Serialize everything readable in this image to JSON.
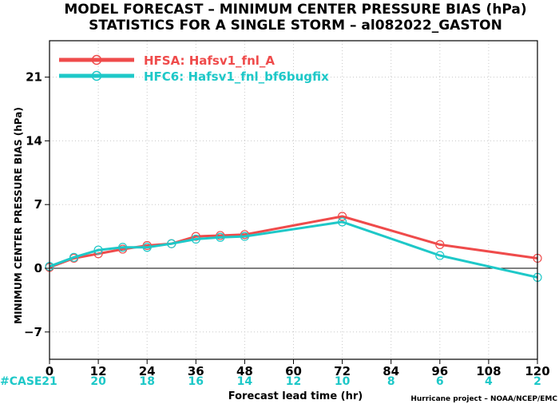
{
  "chart_data": {
    "type": "line",
    "title": "MODEL FORECAST – MINIMUM CENTER PRESSURE BIAS (hPa)",
    "subtitle": "STATISTICS FOR A SINGLE STORM – al082022_GASTON",
    "xlabel": "Forecast lead time (hr)",
    "ylabel": "MINIMUM CENTER PRESSURE BIAS (hPa)",
    "xlim": [
      0,
      120
    ],
    "ylim": [
      -10,
      25
    ],
    "xticks": [
      0,
      12,
      24,
      36,
      48,
      60,
      72,
      84,
      96,
      108,
      120
    ],
    "yticks": [
      -7,
      0,
      7,
      14,
      21
    ],
    "grid": true,
    "zero_line": true,
    "legend_position": "top-left",
    "case_label": "#CASE",
    "cases": [
      {
        "x": 0,
        "n": "21"
      },
      {
        "x": 12,
        "n": "20"
      },
      {
        "x": 24,
        "n": "18"
      },
      {
        "x": 36,
        "n": "16"
      },
      {
        "x": 48,
        "n": "14"
      },
      {
        "x": 60,
        "n": "12"
      },
      {
        "x": 72,
        "n": "10"
      },
      {
        "x": 84,
        "n": "8"
      },
      {
        "x": 96,
        "n": "6"
      },
      {
        "x": 108,
        "n": "4"
      },
      {
        "x": 120,
        "n": "2"
      }
    ],
    "credit": "Hurricane project – NOAA/NCEP/EMC",
    "series": [
      {
        "name": "HFSA: Hafsv1_fnl_A",
        "color": "#ef4b4b",
        "x": [
          0,
          6,
          12,
          18,
          24,
          30,
          36,
          42,
          48,
          72,
          96,
          120
        ],
        "y": [
          0.1,
          1.1,
          1.6,
          2.1,
          2.5,
          2.7,
          3.5,
          3.6,
          3.7,
          5.7,
          2.6,
          1.1
        ]
      },
      {
        "name": "HFC6: Hafsv1_fnl_bf6bugfix",
        "color": "#1ec8c8",
        "x": [
          0,
          6,
          12,
          18,
          24,
          30,
          36,
          42,
          48,
          72,
          96,
          120
        ],
        "y": [
          0.2,
          1.2,
          2.0,
          2.3,
          2.3,
          2.7,
          3.2,
          3.4,
          3.5,
          5.1,
          1.4,
          -1.0
        ]
      }
    ]
  }
}
